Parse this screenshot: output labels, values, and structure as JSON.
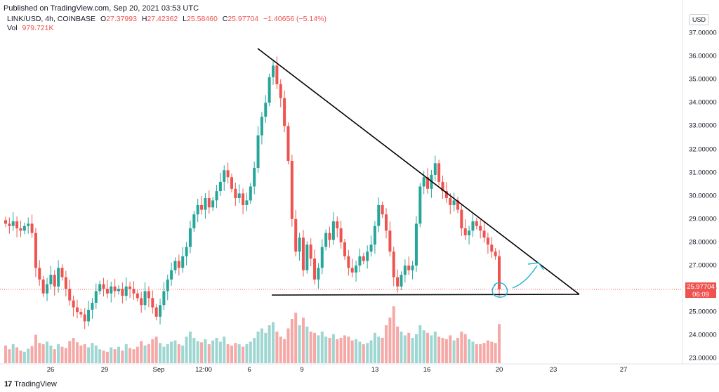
{
  "header": {
    "published": "Published on TradingView.com, Sep 20, 2021 03:53 UTC",
    "symbol": "LINK/USD, 4h, COINBASE",
    "open_label": "O",
    "open": "27.37993",
    "high_label": "H",
    "high": "27.42362",
    "low_label": "L",
    "low": "25.58460",
    "close_label": "C",
    "close": "25.97704",
    "change": "−1.40656 (−5.14%)",
    "vol_label": "Vol",
    "vol": "979.721K",
    "currency": "USD"
  },
  "price_tag": {
    "price": "25.97704",
    "countdown": "06:09"
  },
  "footer": {
    "brand": "TradingView",
    "logo": "17"
  },
  "colors": {
    "up": "#26a69a",
    "down": "#ef5350",
    "vol_up": "#9ed6d1",
    "vol_down": "#f5a8a6",
    "line": "#000000",
    "annot": "#1fb1d6"
  },
  "chart_data": {
    "type": "candlestick",
    "symbol": "LINK/USD",
    "interval": "4h",
    "ylim": [
      22.6,
      37.4
    ],
    "y_ticks": [
      "37.00000",
      "36.00000",
      "35.00000",
      "34.00000",
      "33.00000",
      "32.00000",
      "31.00000",
      "30.00000",
      "29.00000",
      "28.00000",
      "27.00000",
      "26.00000",
      "25.00000",
      "24.00000",
      "23.00000"
    ],
    "x_ticks": [
      "26",
      "29",
      "Sep",
      "12:00",
      "6",
      "9",
      "13",
      "16",
      "20",
      "23",
      "27"
    ],
    "closes": [
      28.8,
      28.7,
      28.9,
      28.6,
      28.5,
      28.7,
      28.8,
      28.4,
      26.9,
      26.4,
      25.8,
      26.2,
      26.6,
      26.1,
      26.9,
      26.5,
      26.0,
      25.5,
      25.2,
      25.0,
      24.9,
      24.6,
      25.1,
      25.4,
      25.9,
      26.2,
      26.0,
      25.8,
      26.1,
      25.9,
      26.0,
      25.7,
      26.1,
      26.0,
      25.8,
      25.6,
      25.3,
      25.9,
      25.6,
      25.2,
      24.8,
      25.3,
      25.9,
      26.4,
      26.8,
      27.2,
      26.9,
      27.4,
      27.8,
      28.6,
      29.2,
      29.6,
      29.4,
      29.9,
      29.5,
      29.8,
      30.2,
      30.6,
      31.1,
      30.8,
      30.3,
      29.9,
      30.1,
      29.6,
      29.8,
      30.4,
      31.2,
      32.6,
      33.4,
      34.0,
      35.1,
      35.6,
      34.8,
      34.2,
      33.0,
      31.5,
      29.0,
      27.6,
      28.2,
      26.8,
      27.9,
      27.3,
      26.4,
      26.9,
      27.8,
      28.4,
      28.1,
      28.9,
      28.6,
      28.0,
      27.4,
      26.9,
      26.7,
      27.0,
      27.4,
      27.2,
      27.6,
      27.9,
      28.7,
      29.6,
      29.2,
      28.5,
      27.6,
      26.5,
      26.1,
      26.6,
      27.0,
      26.8,
      27.0,
      28.8,
      30.4,
      30.8,
      30.3,
      30.9,
      31.4,
      30.6,
      30.2,
      29.9,
      29.6,
      29.8,
      29.4,
      28.6,
      28.3,
      28.5,
      28.9,
      28.7,
      28.5,
      28.2,
      27.9,
      27.6,
      27.4,
      25.98
    ],
    "volume_relative": [
      0.28,
      0.22,
      0.3,
      0.25,
      0.2,
      0.18,
      0.23,
      0.27,
      0.45,
      0.32,
      0.3,
      0.34,
      0.28,
      0.22,
      0.3,
      0.26,
      0.24,
      0.35,
      0.4,
      0.33,
      0.28,
      0.3,
      0.25,
      0.32,
      0.28,
      0.22,
      0.2,
      0.18,
      0.25,
      0.22,
      0.26,
      0.2,
      0.3,
      0.24,
      0.22,
      0.26,
      0.35,
      0.28,
      0.3,
      0.38,
      0.42,
      0.32,
      0.26,
      0.3,
      0.34,
      0.36,
      0.3,
      0.28,
      0.42,
      0.5,
      0.4,
      0.35,
      0.33,
      0.38,
      0.3,
      0.36,
      0.4,
      0.34,
      0.42,
      0.3,
      0.28,
      0.32,
      0.3,
      0.26,
      0.3,
      0.34,
      0.4,
      0.5,
      0.55,
      0.48,
      0.6,
      0.65,
      0.5,
      0.42,
      0.38,
      0.55,
      0.7,
      0.8,
      0.6,
      0.72,
      0.58,
      0.5,
      0.48,
      0.44,
      0.5,
      0.42,
      0.4,
      0.46,
      0.38,
      0.4,
      0.44,
      0.42,
      0.36,
      0.38,
      0.34,
      0.3,
      0.32,
      0.36,
      0.48,
      0.42,
      0.4,
      0.6,
      0.72,
      0.9,
      0.58,
      0.5,
      0.44,
      0.48,
      0.4,
      0.46,
      0.6,
      0.52,
      0.48,
      0.44,
      0.5,
      0.42,
      0.4,
      0.38,
      0.44,
      0.36,
      0.4,
      0.5,
      0.46,
      0.38,
      0.34,
      0.3,
      0.3,
      0.32,
      0.36,
      0.34,
      0.32,
      0.62
    ],
    "annotations": [
      {
        "type": "trendline",
        "label": "descending resistance"
      },
      {
        "type": "horizontal",
        "label": "support",
        "price": 25.65
      },
      {
        "type": "hand-drawn circle and arrow",
        "label": "breakout projection"
      }
    ]
  }
}
